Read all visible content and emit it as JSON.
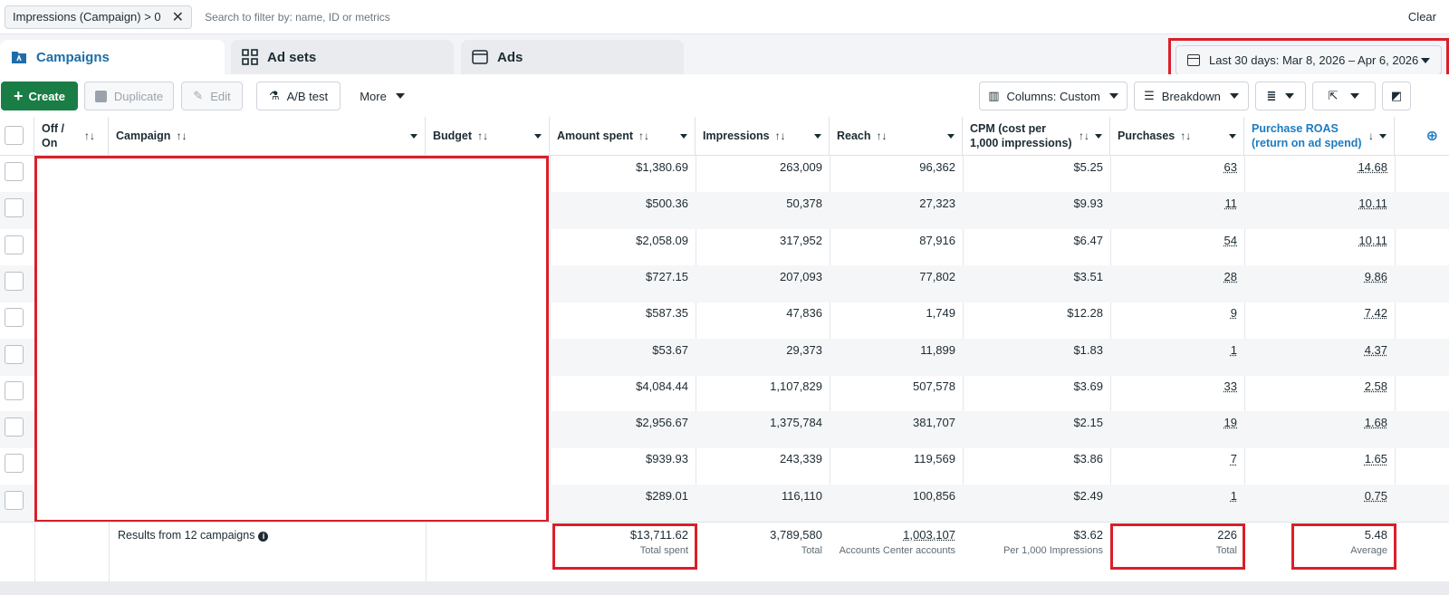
{
  "filter": {
    "chip_label": "Impressions (Campaign) > 0",
    "search_placeholder": "Search to filter by: name, ID or metrics",
    "clear_label": "Clear"
  },
  "tabs": [
    {
      "label": "Campaigns",
      "icon": "folder-icon",
      "active": true
    },
    {
      "label": "Ad sets",
      "icon": "grid-icon",
      "active": false
    },
    {
      "label": "Ads",
      "icon": "window-icon",
      "active": false
    }
  ],
  "date_range": {
    "label": "Last 30 days: Mar 8, 2026 – Apr 6, 2026"
  },
  "toolbar": {
    "create": "Create",
    "duplicate": "Duplicate",
    "edit": "Edit",
    "ab_test": "A/B test",
    "more": "More",
    "columns": "Columns: Custom",
    "breakdown": "Breakdown"
  },
  "columns": {
    "off_on": "Off / On",
    "campaign": "Campaign",
    "budget": "Budget",
    "amount_spent": "Amount spent",
    "impressions": "Impressions",
    "reach": "Reach",
    "cpm": "CPM (cost per 1,000 impressions)",
    "purchases": "Purchases",
    "roas": "Purchase ROAS (return on ad spend)"
  },
  "rows": [
    {
      "amount_spent": "$1,380.69",
      "impressions": "263,009",
      "reach": "96,362",
      "cpm": "$5.25",
      "purchases": "63",
      "roas": "14.68"
    },
    {
      "amount_spent": "$500.36",
      "impressions": "50,378",
      "reach": "27,323",
      "cpm": "$9.93",
      "purchases": "11",
      "roas": "10.11"
    },
    {
      "amount_spent": "$2,058.09",
      "impressions": "317,952",
      "reach": "87,916",
      "cpm": "$6.47",
      "purchases": "54",
      "roas": "10.11"
    },
    {
      "amount_spent": "$727.15",
      "impressions": "207,093",
      "reach": "77,802",
      "cpm": "$3.51",
      "purchases": "28",
      "roas": "9.86"
    },
    {
      "amount_spent": "$587.35",
      "impressions": "47,836",
      "reach": "1,749",
      "cpm": "$12.28",
      "purchases": "9",
      "roas": "7.42"
    },
    {
      "amount_spent": "$53.67",
      "impressions": "29,373",
      "reach": "11,899",
      "cpm": "$1.83",
      "purchases": "1",
      "roas": "4.37"
    },
    {
      "amount_spent": "$4,084.44",
      "impressions": "1,107,829",
      "reach": "507,578",
      "cpm": "$3.69",
      "purchases": "33",
      "roas": "2.58"
    },
    {
      "amount_spent": "$2,956.67",
      "impressions": "1,375,784",
      "reach": "381,707",
      "cpm": "$2.15",
      "purchases": "19",
      "roas": "1.68"
    },
    {
      "amount_spent": "$939.93",
      "impressions": "243,339",
      "reach": "119,569",
      "cpm": "$3.86",
      "purchases": "7",
      "roas": "1.65"
    },
    {
      "amount_spent": "$289.01",
      "impressions": "116,110",
      "reach": "100,856",
      "cpm": "$2.49",
      "purchases": "1",
      "roas": "0.75"
    }
  ],
  "totals": {
    "label": "Results from 12 campaigns",
    "amount_spent": "$13,711.62",
    "amount_spent_sub": "Total spent",
    "impressions": "3,789,580",
    "impressions_sub": "Total",
    "reach": "1,003,107",
    "reach_sub": "Accounts Center accounts",
    "cpm": "$3.62",
    "cpm_sub": "Per 1,000 Impressions",
    "purchases": "226",
    "purchases_sub": "Total",
    "roas": "5.48",
    "roas_sub": "Average"
  },
  "colors": {
    "accent": "#1d7bbf",
    "create_green": "#1a7d45",
    "highlight_red": "#d9202a"
  }
}
